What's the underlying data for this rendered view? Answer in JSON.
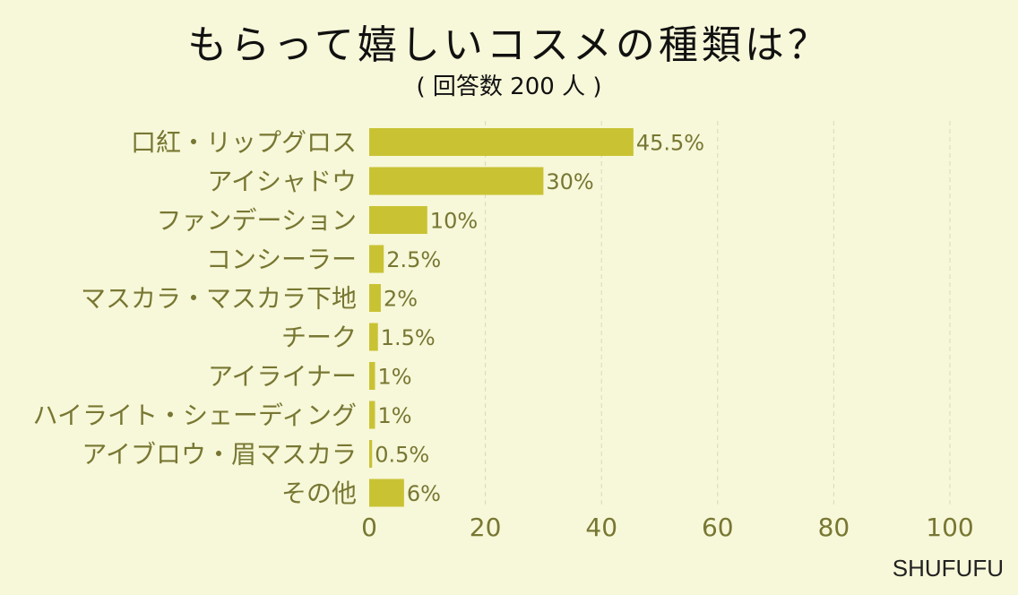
{
  "chart_data": {
    "type": "bar",
    "orientation": "horizontal",
    "title": "もらって嬉しいコスメの種類は？",
    "subtitle": "( 回答数 200 人 )",
    "categories": [
      "口紅・リップグロス",
      "アイシャドウ",
      "ファンデーション",
      "コンシーラー",
      "マスカラ・マスカラ下地",
      "チーク",
      "アイライナー",
      "ハイライト・シェーディング",
      "アイブロウ・眉マスカラ",
      "その他"
    ],
    "values": [
      45.5,
      30,
      10,
      2.5,
      2,
      1.5,
      1,
      1,
      0.5,
      6
    ],
    "value_labels": [
      "45.5%",
      "30%",
      "10%",
      "2.5%",
      "2%",
      "1.5%",
      "1%",
      "1%",
      "0.5%",
      "6%"
    ],
    "xlim": [
      0,
      100
    ],
    "xticks": [
      "0",
      "20",
      "40",
      "60",
      "80",
      "100"
    ],
    "grid": true,
    "bar_color": "#c9c334",
    "text_color": "#777733"
  },
  "footer": {
    "brand": "SHUFUFU"
  }
}
